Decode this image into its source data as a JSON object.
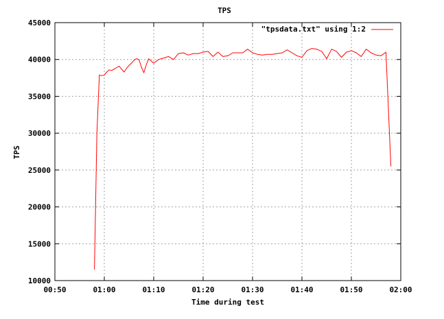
{
  "chart_data": {
    "type": "line",
    "title": "TPS",
    "xlabel": "Time during test",
    "ylabel": "TPS",
    "xlim": [
      "00:50",
      "02:00"
    ],
    "ylim": [
      10000,
      45000
    ],
    "grid": true,
    "legend_position": "top-right",
    "x_ticks": [
      "00:50",
      "01:00",
      "01:10",
      "01:20",
      "01:30",
      "01:40",
      "01:50",
      "02:00"
    ],
    "y_ticks": [
      10000,
      15000,
      20000,
      25000,
      30000,
      35000,
      40000,
      45000
    ],
    "series": [
      {
        "name": "\"tpsdata.txt\" using 1:2",
        "color": "#ff0000",
        "x": [
          "00:58:00",
          "00:58:30",
          "00:59:00",
          "00:59:30",
          "01:00:00",
          "01:00:30",
          "01:01:00",
          "01:01:30",
          "01:02:00",
          "01:02:30",
          "01:03:00",
          "01:03:30",
          "01:04:00",
          "01:04:30",
          "01:05:00",
          "01:05:30",
          "01:06:00",
          "01:06:30",
          "01:07:00",
          "01:07:30",
          "01:08:00",
          "01:08:30",
          "01:09:00",
          "01:09:30",
          "01:10:00",
          "01:11:00",
          "01:12:00",
          "01:13:00",
          "01:14:00",
          "01:15:00",
          "01:16:00",
          "01:17:00",
          "01:18:00",
          "01:19:00",
          "01:20:00",
          "01:21:00",
          "01:22:00",
          "01:23:00",
          "01:24:00",
          "01:25:00",
          "01:26:00",
          "01:27:00",
          "01:28:00",
          "01:29:00",
          "01:30:00",
          "01:31:00",
          "01:32:00",
          "01:33:00",
          "01:34:00",
          "01:35:00",
          "01:36:00",
          "01:37:00",
          "01:38:00",
          "01:39:00",
          "01:40:00",
          "01:41:00",
          "01:42:00",
          "01:43:00",
          "01:44:00",
          "01:45:00",
          "01:46:00",
          "01:47:00",
          "01:48:00",
          "01:49:00",
          "01:50:00",
          "01:51:00",
          "01:52:00",
          "01:53:00",
          "01:54:00",
          "01:55:00",
          "01:56:00",
          "01:57:00",
          "01:58:00"
        ],
        "y": [
          11500,
          30000,
          37900,
          37800,
          37900,
          38300,
          38600,
          38500,
          38700,
          38900,
          39100,
          38700,
          38300,
          38800,
          39200,
          39500,
          39900,
          40100,
          40000,
          39000,
          38200,
          39300,
          40100,
          39800,
          39500,
          40000,
          40200,
          40400,
          40000,
          40800,
          40900,
          40600,
          40800,
          40800,
          41000,
          41100,
          40400,
          41000,
          40400,
          40500,
          40900,
          40900,
          40900,
          41400,
          40900,
          40700,
          40600,
          40700,
          40700,
          40800,
          40900,
          41300,
          40900,
          40500,
          40300,
          41200,
          41500,
          41400,
          41100,
          40100,
          41400,
          41100,
          40300,
          41000,
          41200,
          40900,
          40400,
          41400,
          40900,
          40600,
          40500,
          41000,
          25500
        ]
      }
    ]
  }
}
